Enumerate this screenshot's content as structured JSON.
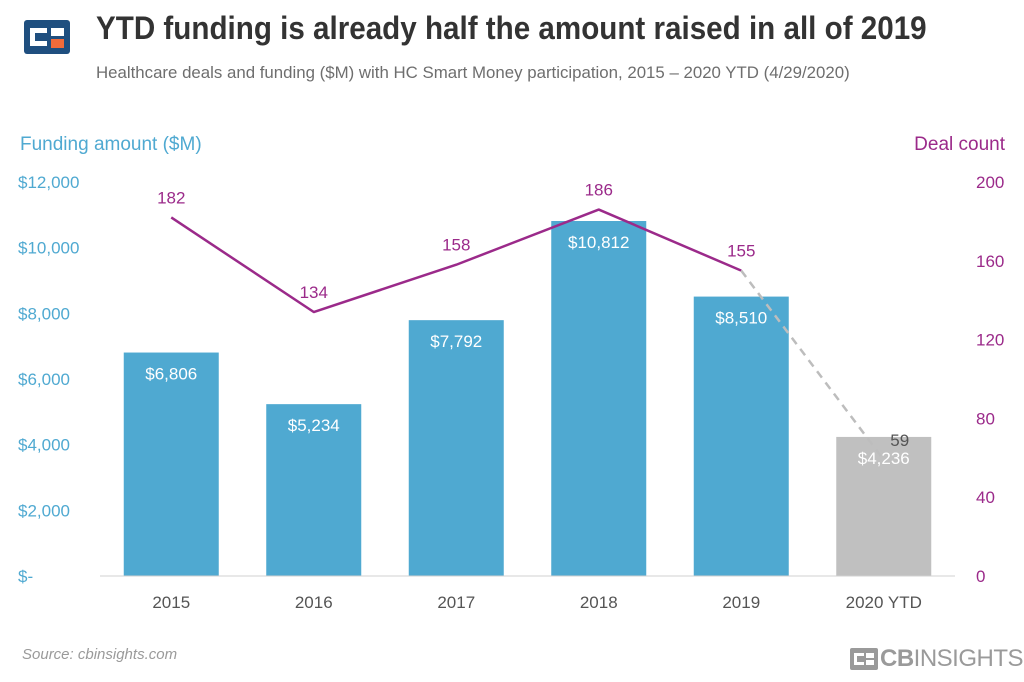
{
  "header": {
    "title": "YTD funding is already half the amount raised in all of 2019",
    "subtitle": "Healthcare deals and funding ($M) with HC Smart Money participation, 2015 – 2020 YTD (4/29/2020)"
  },
  "footer": {
    "source": "Source: cbinsights.com",
    "brand_bold": "CB",
    "brand_light": "INSIGHTS"
  },
  "colors": {
    "bar": "#4fa9d1",
    "bar_ytd": "#c0c0c0",
    "line": "#9b2a8a",
    "line_projection": "#bdbdbd",
    "left_axis": "#4fa9d1",
    "right_axis": "#9b2a8a",
    "text": "#555555",
    "logo_navy": "#1f4f7f",
    "logo_orange": "#f26b3a"
  },
  "chart_data": {
    "type": "bar",
    "title": "YTD funding is already half the amount raised in all of 2019",
    "categories": [
      "2015",
      "2016",
      "2017",
      "2018",
      "2019",
      "2020 YTD"
    ],
    "series": [
      {
        "name": "Funding amount ($M)",
        "type": "bar",
        "axis": "left",
        "values": [
          6806,
          5234,
          7792,
          10812,
          8510,
          4236
        ],
        "labels": [
          "$6,806",
          "$5,234",
          "$7,792",
          "$10,812",
          "$8,510",
          "$4,236"
        ]
      },
      {
        "name": "Deal count",
        "type": "line",
        "axis": "right",
        "values": [
          182,
          134,
          158,
          186,
          155,
          59
        ],
        "labels": [
          "182",
          "134",
          "158",
          "186",
          "155",
          "59"
        ],
        "dashed_last_segment": true
      }
    ],
    "left_axis": {
      "label": "Funding amount ($M)",
      "ylim": [
        0,
        12000
      ],
      "ticks": [
        0,
        2000,
        4000,
        6000,
        8000,
        10000,
        12000
      ],
      "tick_labels": [
        "$-",
        "$2,000",
        "$4,000",
        "$6,000",
        "$8,000",
        "$10,000",
        "$12,000"
      ]
    },
    "right_axis": {
      "label": "Deal count",
      "ylim": [
        0,
        200
      ],
      "ticks": [
        0,
        40,
        80,
        120,
        160,
        200
      ],
      "tick_labels": [
        "0",
        "40",
        "80",
        "120",
        "160",
        "200"
      ]
    },
    "grid": false
  }
}
